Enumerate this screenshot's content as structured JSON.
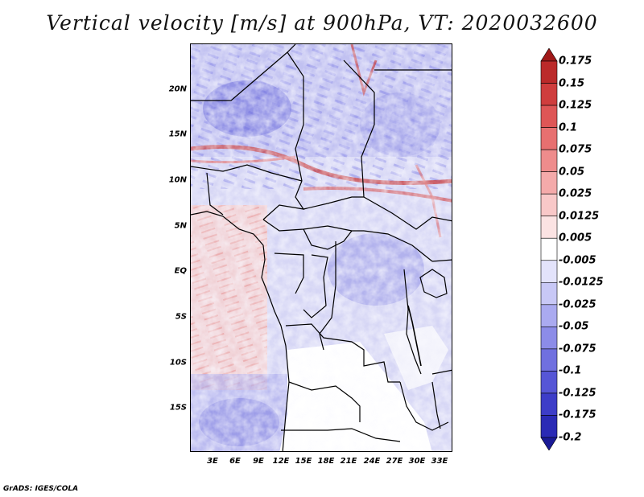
{
  "title": "Vertical velocity [m/s] at 900hPa, VT: 2020032600",
  "y_axis": {
    "labels": [
      "20N",
      "15N",
      "10N",
      "5N",
      "EQ",
      "5S",
      "10S",
      "15S"
    ]
  },
  "x_axis": {
    "labels": [
      "3E",
      "6E",
      "9E",
      "12E",
      "15E",
      "18E",
      "21E",
      "24E",
      "27E",
      "30E",
      "33E"
    ]
  },
  "legend": {
    "labels": [
      "0.175",
      "0.15",
      "0.125",
      "0.1",
      "0.075",
      "0.05",
      "0.025",
      "0.0125",
      "0.005",
      "-0.005",
      "-0.0125",
      "-0.025",
      "-0.05",
      "-0.075",
      "-0.1",
      "-0.125",
      "-0.175",
      "-0.2"
    ],
    "colors": [
      "#a01818",
      "#bb2a2a",
      "#cf3d3d",
      "#de5656",
      "#e77070",
      "#ee8c8c",
      "#f4aaaa",
      "#f8c8c8",
      "#fbe3e3",
      "#ffffff",
      "#e3e3fb",
      "#c8c8f6",
      "#aaaaf0",
      "#8c8ce8",
      "#7070df",
      "#5656d6",
      "#3d3dc8",
      "#2a2ab5",
      "#1a1a96"
    ]
  },
  "footer": "GrADS: IGES/COLA"
}
